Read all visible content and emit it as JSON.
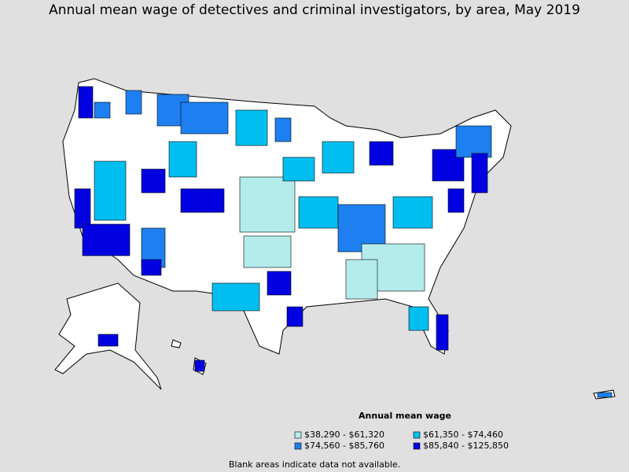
{
  "header": {
    "title": "Annual mean wage of detectives and criminal investigators, by area, May 2019"
  },
  "legend": {
    "title": "Annual mean wage",
    "items": [
      {
        "label": "$38,290 - $61,320",
        "color": "#b4ecec"
      },
      {
        "label": "$61,350 - $74,460",
        "color": "#00bff0"
      },
      {
        "label": "$74,560 - $85,760",
        "color": "#1e80f0"
      },
      {
        "label": "$85,840 - $125,850",
        "color": "#0000e0"
      }
    ]
  },
  "footnote": "Blank areas indicate data not available."
}
